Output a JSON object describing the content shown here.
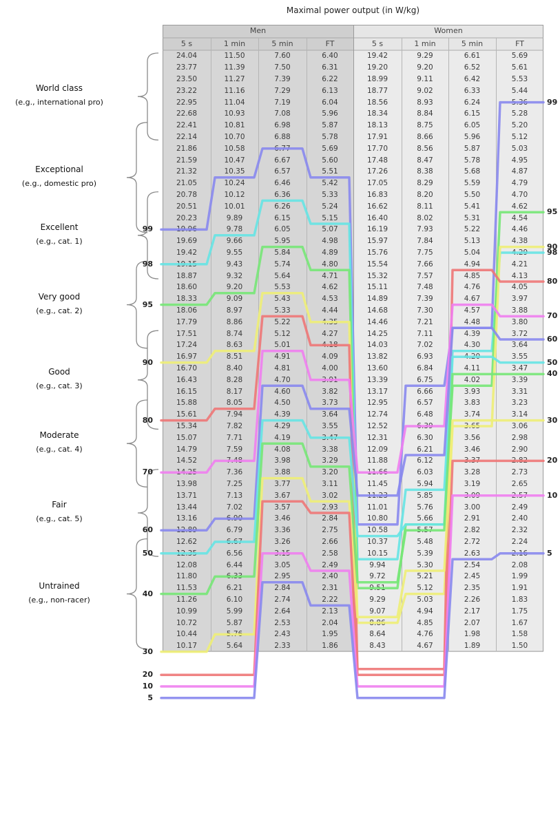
{
  "chart_data": {
    "type": "table",
    "title": "Maximal power output (in W/kg)",
    "groups": [
      "Men",
      "Women"
    ],
    "columns": [
      "5 s",
      "1 min",
      "5 min",
      "FT"
    ],
    "rows": [
      {
        "men": [
          "24.04",
          "11.50",
          "7.60",
          "6.40"
        ],
        "women": [
          "19.42",
          "9.29",
          "6.61",
          "5.69"
        ]
      },
      {
        "men": [
          "23.77",
          "11.39",
          "7.50",
          "6.31"
        ],
        "women": [
          "19.20",
          "9.20",
          "6.52",
          "5.61"
        ]
      },
      {
        "men": [
          "23.50",
          "11.27",
          "7.39",
          "6.22"
        ],
        "women": [
          "18.99",
          "9.11",
          "6.42",
          "5.53"
        ]
      },
      {
        "men": [
          "23.22",
          "11.16",
          "7.29",
          "6.13"
        ],
        "women": [
          "18.77",
          "9.02",
          "6.33",
          "5.44"
        ]
      },
      {
        "men": [
          "22.95",
          "11.04",
          "7.19",
          "6.04"
        ],
        "women": [
          "18.56",
          "8.93",
          "6.24",
          "5.36"
        ]
      },
      {
        "men": [
          "22.68",
          "10.93",
          "7.08",
          "5.96"
        ],
        "women": [
          "18.34",
          "8.84",
          "6.15",
          "5.28"
        ]
      },
      {
        "men": [
          "22.41",
          "10.81",
          "6.98",
          "5.87"
        ],
        "women": [
          "18.13",
          "8.75",
          "6.05",
          "5.20"
        ]
      },
      {
        "men": [
          "22.14",
          "10.70",
          "6.88",
          "5.78"
        ],
        "women": [
          "17.91",
          "8.66",
          "5.96",
          "5.12"
        ]
      },
      {
        "men": [
          "21.86",
          "10.58",
          "6.77",
          "5.69"
        ],
        "women": [
          "17.70",
          "8.56",
          "5.87",
          "5.03"
        ]
      },
      {
        "men": [
          "21.59",
          "10.47",
          "6.67",
          "5.60"
        ],
        "women": [
          "17.48",
          "8.47",
          "5.78",
          "4.95"
        ]
      },
      {
        "men": [
          "21.32",
          "10.35",
          "6.57",
          "5.51"
        ],
        "women": [
          "17.26",
          "8.38",
          "5.68",
          "4.87"
        ]
      },
      {
        "men": [
          "21.05",
          "10.24",
          "6.46",
          "5.42"
        ],
        "women": [
          "17.05",
          "8.29",
          "5.59",
          "4.79"
        ]
      },
      {
        "men": [
          "20.78",
          "10.12",
          "6.36",
          "5.33"
        ],
        "women": [
          "16.83",
          "8.20",
          "5.50",
          "4.70"
        ]
      },
      {
        "men": [
          "20.51",
          "10.01",
          "6.26",
          "5.24"
        ],
        "women": [
          "16.62",
          "8.11",
          "5.41",
          "4.62"
        ]
      },
      {
        "men": [
          "20.23",
          "9.89",
          "6.15",
          "5.15"
        ],
        "women": [
          "16.40",
          "8.02",
          "5.31",
          "4.54"
        ]
      },
      {
        "men": [
          "19.96",
          "9.78",
          "6.05",
          "5.07"
        ],
        "women": [
          "16.19",
          "7.93",
          "5.22",
          "4.46"
        ]
      },
      {
        "men": [
          "19.69",
          "9.66",
          "5.95",
          "4.98"
        ],
        "women": [
          "15.97",
          "7.84",
          "5.13",
          "4.38"
        ]
      },
      {
        "men": [
          "19.42",
          "9.55",
          "5.84",
          "4.89"
        ],
        "women": [
          "15.76",
          "7.75",
          "5.04",
          "4.29"
        ]
      },
      {
        "men": [
          "19.15",
          "9.43",
          "5.74",
          "4.80"
        ],
        "women": [
          "15.54",
          "7.66",
          "4.94",
          "4.21"
        ]
      },
      {
        "men": [
          "18.87",
          "9.32",
          "5.64",
          "4.71"
        ],
        "women": [
          "15.32",
          "7.57",
          "4.85",
          "4.13"
        ]
      },
      {
        "men": [
          "18.60",
          "9.20",
          "5.53",
          "4.62"
        ],
        "women": [
          "15.11",
          "7.48",
          "4.76",
          "4.05"
        ]
      },
      {
        "men": [
          "18.33",
          "9.09",
          "5.43",
          "4.53"
        ],
        "women": [
          "14.89",
          "7.39",
          "4.67",
          "3.97"
        ]
      },
      {
        "men": [
          "18.06",
          "8.97",
          "5.33",
          "4.44"
        ],
        "women": [
          "14.68",
          "7.30",
          "4.57",
          "3.88"
        ]
      },
      {
        "men": [
          "17.79",
          "8.86",
          "5.22",
          "4.35"
        ],
        "women": [
          "14.46",
          "7.21",
          "4.48",
          "3.80"
        ]
      },
      {
        "men": [
          "17.51",
          "8.74",
          "5.12",
          "4.27"
        ],
        "women": [
          "14.25",
          "7.11",
          "4.39",
          "3.72"
        ]
      },
      {
        "men": [
          "17.24",
          "8.63",
          "5.01",
          "4.18"
        ],
        "women": [
          "14.03",
          "7.02",
          "4.30",
          "3.64"
        ]
      },
      {
        "men": [
          "16.97",
          "8.51",
          "4.91",
          "4.09"
        ],
        "women": [
          "13.82",
          "6.93",
          "4.20",
          "3.55"
        ]
      },
      {
        "men": [
          "16.70",
          "8.40",
          "4.81",
          "4.00"
        ],
        "women": [
          "13.60",
          "6.84",
          "4.11",
          "3.47"
        ]
      },
      {
        "men": [
          "16.43",
          "8.28",
          "4.70",
          "3.91"
        ],
        "women": [
          "13.39",
          "6.75",
          "4.02",
          "3.39"
        ]
      },
      {
        "men": [
          "16.15",
          "8.17",
          "4.60",
          "3.82"
        ],
        "women": [
          "13.17",
          "6.66",
          "3.93",
          "3.31"
        ]
      },
      {
        "men": [
          "15.88",
          "8.05",
          "4.50",
          "3.73"
        ],
        "women": [
          "12.95",
          "6.57",
          "3.83",
          "3.23"
        ]
      },
      {
        "men": [
          "15.61",
          "7.94",
          "4.39",
          "3.64"
        ],
        "women": [
          "12.74",
          "6.48",
          "3.74",
          "3.14"
        ]
      },
      {
        "men": [
          "15.34",
          "7.82",
          "4.29",
          "3.55"
        ],
        "women": [
          "12.52",
          "6.39",
          "3.65",
          "3.06"
        ]
      },
      {
        "men": [
          "15.07",
          "7.71",
          "4.19",
          "3.47"
        ],
        "women": [
          "12.31",
          "6.30",
          "3.56",
          "2.98"
        ]
      },
      {
        "men": [
          "14.79",
          "7.59",
          "4.08",
          "3.38"
        ],
        "women": [
          "12.09",
          "6.21",
          "3.46",
          "2.90"
        ]
      },
      {
        "men": [
          "14.52",
          "7.48",
          "3.98",
          "3.29"
        ],
        "women": [
          "11.88",
          "6.12",
          "3.37",
          "2.82"
        ]
      },
      {
        "men": [
          "14.25",
          "7.36",
          "3.88",
          "3.20"
        ],
        "women": [
          "11.66",
          "6.03",
          "3.28",
          "2.73"
        ]
      },
      {
        "men": [
          "13.98",
          "7.25",
          "3.77",
          "3.11"
        ],
        "women": [
          "11.45",
          "5.94",
          "3.19",
          "2.65"
        ]
      },
      {
        "men": [
          "13.71",
          "7.13",
          "3.67",
          "3.02"
        ],
        "women": [
          "11.23",
          "5.85",
          "3.09",
          "2.57"
        ]
      },
      {
        "men": [
          "13.44",
          "7.02",
          "3.57",
          "2.93"
        ],
        "women": [
          "11.01",
          "5.76",
          "3.00",
          "2.49"
        ]
      },
      {
        "men": [
          "13.16",
          "6.90",
          "3.46",
          "2.84"
        ],
        "women": [
          "10.80",
          "5.66",
          "2.91",
          "2.40"
        ]
      },
      {
        "men": [
          "12.89",
          "6.79",
          "3.36",
          "2.75"
        ],
        "women": [
          "10.58",
          "5.57",
          "2.82",
          "2.32"
        ]
      },
      {
        "men": [
          "12.62",
          "6.67",
          "3.26",
          "2.66"
        ],
        "women": [
          "10.37",
          "5.48",
          "2.72",
          "2.24"
        ]
      },
      {
        "men": [
          "12.35",
          "6.56",
          "3.15",
          "2.58"
        ],
        "women": [
          "10.15",
          "5.39",
          "2.63",
          "2.16"
        ]
      },
      {
        "men": [
          "12.08",
          "6.44",
          "3.05",
          "2.49"
        ],
        "women": [
          "9.94",
          "5.30",
          "2.54",
          "2.08"
        ]
      },
      {
        "men": [
          "11.80",
          "6.33",
          "2.95",
          "2.40"
        ],
        "women": [
          "9.72",
          "5.21",
          "2.45",
          "1.99"
        ]
      },
      {
        "men": [
          "11.53",
          "6.21",
          "2.84",
          "2.31"
        ],
        "women": [
          "9.51",
          "5.12",
          "2.35",
          "1.91"
        ]
      },
      {
        "men": [
          "11.26",
          "6.10",
          "2.74",
          "2.22"
        ],
        "women": [
          "9.29",
          "5.03",
          "2.26",
          "1.83"
        ]
      },
      {
        "men": [
          "10.99",
          "5.99",
          "2.64",
          "2.13"
        ],
        "women": [
          "9.07",
          "4.94",
          "2.17",
          "1.75"
        ]
      },
      {
        "men": [
          "10.72",
          "5.87",
          "2.53",
          "2.04"
        ],
        "women": [
          "8.86",
          "4.85",
          "2.07",
          "1.67"
        ]
      },
      {
        "men": [
          "10.44",
          "5.76",
          "2.43",
          "1.95"
        ],
        "women": [
          "8.64",
          "4.76",
          "1.98",
          "1.58"
        ]
      },
      {
        "men": [
          "10.17",
          "5.64",
          "2.33",
          "1.86"
        ],
        "women": [
          "8.43",
          "4.67",
          "1.89",
          "1.50"
        ]
      }
    ],
    "categories": [
      {
        "name": "World class",
        "example": "(e.g., international pro)",
        "start_row": 0,
        "end_row": 7
      },
      {
        "name": "Exceptional",
        "example": "(e.g., domestic pro)",
        "start_row": 6,
        "end_row": 15
      },
      {
        "name": "Excellent",
        "example": "(e.g., cat. 1)",
        "start_row": 12,
        "end_row": 19
      },
      {
        "name": "Very good",
        "example": "(e.g., cat. 2)",
        "start_row": 18,
        "end_row": 25
      },
      {
        "name": "Good",
        "example": "(e.g., cat. 3)",
        "start_row": 24,
        "end_row": 32
      },
      {
        "name": "Moderate",
        "example": "(e.g., cat. 4)",
        "start_row": 30,
        "end_row": 37
      },
      {
        "name": "Fair",
        "example": "(e.g., cat. 5)",
        "start_row": 36,
        "end_row": 43
      },
      {
        "name": "Untrained",
        "example": "(e.g., non-racer)",
        "start_row": 42,
        "end_row": 51
      }
    ],
    "percentile_series": [
      {
        "name": "99",
        "color": "#8888ee",
        "levels": [
          15,
          10.5,
          8,
          10.5,
          40.5,
          28.5,
          23.5,
          4
        ]
      },
      {
        "name": "98",
        "color": "#66e4e4",
        "levels": [
          18,
          15.5,
          12.5,
          14.5,
          43.5,
          37.5,
          25.5,
          17
        ]
      },
      {
        "name": "95",
        "color": "#77e777",
        "levels": [
          21.5,
          20.5,
          16.5,
          18.5,
          46,
          40.5,
          28.5,
          13.5
        ]
      },
      {
        "name": "90",
        "color": "#eeee77",
        "levels": [
          26.5,
          25.5,
          20.5,
          23,
          49,
          46.5,
          32,
          16.5
        ]
      },
      {
        "name": "80",
        "color": "#ee7777",
        "levels": [
          31.5,
          30.5,
          22.5,
          25,
          53,
          53,
          18.5,
          19.5
        ]
      },
      {
        "name": "70",
        "color": "#f07ef0",
        "levels": [
          36,
          35,
          25.5,
          28,
          36,
          32,
          21.5,
          22.5
        ]
      },
      {
        "name": "60",
        "color": "#8888ee",
        "levels": [
          41,
          40,
          28.5,
          30.5,
          38,
          34.5,
          23.5,
          24.5
        ]
      },
      {
        "name": "50",
        "color": "#66e4e4",
        "levels": [
          43,
          42,
          31.5,
          33,
          41.5,
          40.5,
          26,
          26.5
        ]
      },
      {
        "name": "40",
        "color": "#77e777",
        "levels": [
          46.5,
          45,
          33.5,
          35.5,
          45.5,
          41,
          27.5,
          27.5
        ]
      },
      {
        "name": "30",
        "color": "#eeee77",
        "levels": [
          51.5,
          50,
          36.5,
          38.5,
          48.5,
          44.5,
          31.5,
          31.5
        ]
      },
      {
        "name": "20",
        "color": "#ee7777",
        "levels": [
          53.5,
          53.5,
          38.5,
          39.5,
          53.5,
          53.5,
          35,
          35
        ]
      },
      {
        "name": "10",
        "color": "#f07ef0",
        "levels": [
          54.5,
          54.5,
          43,
          44.5,
          54.5,
          54.5,
          38,
          38
        ]
      },
      {
        "name": "5",
        "color": "#8888ee",
        "levels": [
          55.5,
          55.5,
          45.5,
          47.5,
          55.5,
          55.5,
          43.5,
          43
        ]
      }
    ]
  }
}
